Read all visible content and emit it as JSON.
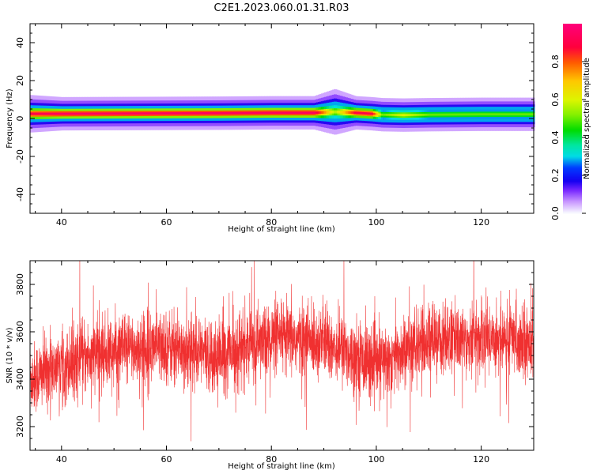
{
  "figure": {
    "title": "C2E1.2023.060.01.31.R03"
  },
  "chart_data": [
    {
      "type": "heatmap",
      "xlabel": "Height of straight line (km)",
      "ylabel": "Frequency (Hz)",
      "xlim": [
        34,
        130
      ],
      "ylim": [
        -50,
        50
      ],
      "xticks": [
        "40",
        "60",
        "80",
        "100",
        "120"
      ],
      "yticks": [
        "40",
        "20",
        "0",
        "-20",
        "-40"
      ],
      "grid": false,
      "colorbar": {
        "label": "Normalized spectral amplitude",
        "range": [
          0,
          1
        ],
        "ticks": [
          "0.0",
          "0.2",
          "0.4",
          "0.6",
          "0.8"
        ],
        "colormap": "gist_ncar"
      },
      "ridge": [
        {
          "x": 34,
          "center": 2.5,
          "half_width": 4.5,
          "peak": 0.9
        },
        {
          "x": 40,
          "center": 2.5,
          "half_width": 4,
          "peak": 0.95
        },
        {
          "x": 50,
          "center": 2.6,
          "half_width": 4,
          "peak": 0.95
        },
        {
          "x": 60,
          "center": 2.7,
          "half_width": 4,
          "peak": 0.95
        },
        {
          "x": 70,
          "center": 2.8,
          "half_width": 4,
          "peak": 0.95
        },
        {
          "x": 80,
          "center": 3.0,
          "half_width": 4,
          "peak": 0.95
        },
        {
          "x": 88,
          "center": 3.0,
          "half_width": 4,
          "peak": 0.95
        },
        {
          "x": 92,
          "center": 3.5,
          "half_width": 5.5,
          "peak": 0.55
        },
        {
          "x": 96,
          "center": 3.0,
          "half_width": 4,
          "peak": 0.9
        },
        {
          "x": 99,
          "center": 2.5,
          "half_width": 4,
          "peak": 0.9
        },
        {
          "x": 101,
          "center": 2.0,
          "half_width": 4,
          "peak": 0.5
        },
        {
          "x": 105,
          "center": 1.8,
          "half_width": 4,
          "peak": 0.6
        },
        {
          "x": 110,
          "center": 2.0,
          "half_width": 4,
          "peak": 0.5
        },
        {
          "x": 120,
          "center": 2.2,
          "half_width": 4,
          "peak": 0.5
        },
        {
          "x": 130,
          "center": 2.2,
          "half_width": 4,
          "peak": 0.5
        }
      ]
    },
    {
      "type": "line",
      "xlabel": "Height of straight line (km)",
      "ylabel": "SNR (10 * v/v)",
      "xlim": [
        34,
        130
      ],
      "ylim": [
        3100,
        3900
      ],
      "xticks": [
        "40",
        "60",
        "80",
        "100",
        "120"
      ],
      "yticks": [
        "3800",
        "3600",
        "3400",
        "3200"
      ],
      "grid": false,
      "color": "#f03030",
      "samples": 4000,
      "mean_profile": [
        {
          "x": 34,
          "y": 3400
        },
        {
          "x": 40,
          "y": 3460
        },
        {
          "x": 50,
          "y": 3520
        },
        {
          "x": 60,
          "y": 3540
        },
        {
          "x": 70,
          "y": 3500
        },
        {
          "x": 80,
          "y": 3570
        },
        {
          "x": 90,
          "y": 3560
        },
        {
          "x": 100,
          "y": 3460
        },
        {
          "x": 110,
          "y": 3560
        },
        {
          "x": 120,
          "y": 3580
        },
        {
          "x": 130,
          "y": 3560
        }
      ],
      "noise_sd": 75
    }
  ]
}
